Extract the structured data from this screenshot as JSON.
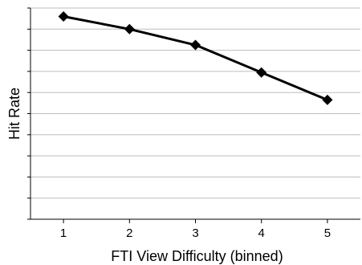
{
  "chart_data": {
    "type": "line",
    "title": "",
    "xlabel": "FTI View Difficulty (binned)",
    "ylabel": "Hit Rate",
    "x": [
      1,
      2,
      3,
      4,
      5
    ],
    "x_tick_labels": [
      "1",
      "2",
      "3",
      "4",
      "5"
    ],
    "xlim": [
      0.5,
      5.5
    ],
    "ylim": [
      0,
      10
    ],
    "y_tick_labels_shown": false,
    "grid": "horizontal",
    "legend": "none",
    "series": [
      {
        "values": [
          9.6,
          9.0,
          8.25,
          6.95,
          5.65
        ],
        "marker": "diamond",
        "color": "#000000"
      }
    ]
  }
}
